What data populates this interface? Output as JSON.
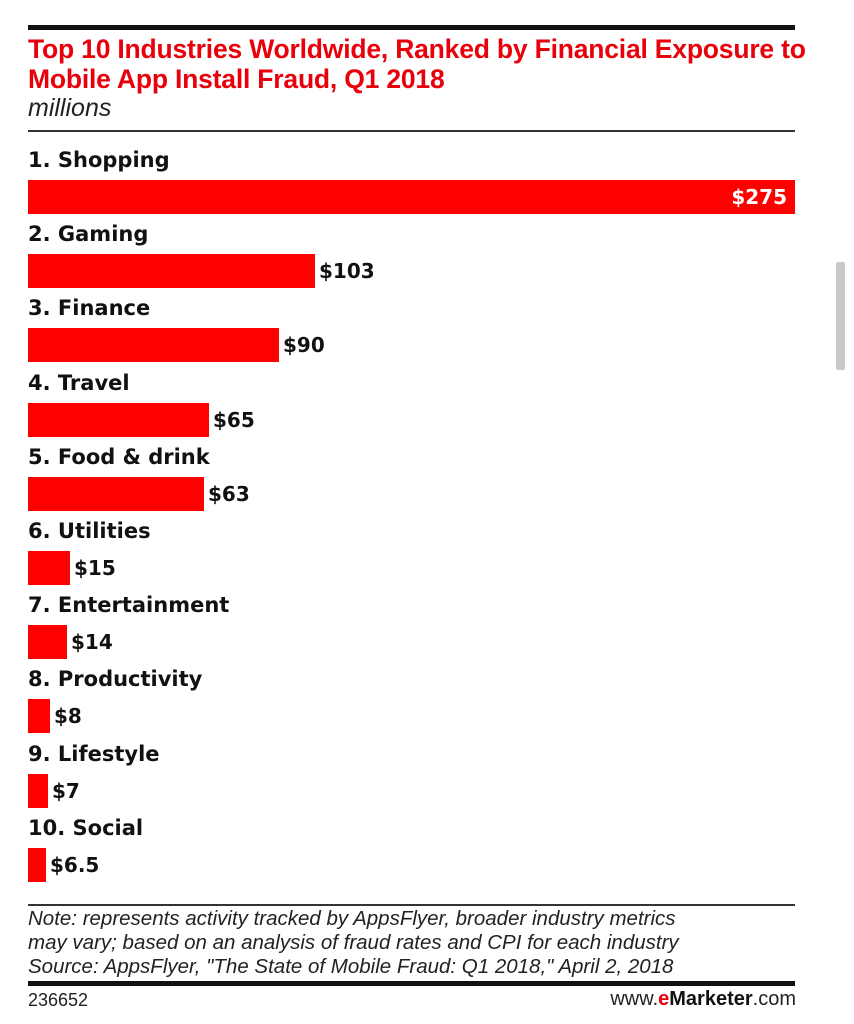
{
  "title": "Top 10 Industries Worldwide, Ranked by Financial Exposure to Mobile App Install Fraud, Q1 2018",
  "subtitle": "millions",
  "note_lines": [
    "Note: represents activity tracked by AppsFlyer, broader industry metrics",
    "may vary; based on an analysis of fraud rates and CPI for each industry",
    "Source: AppsFlyer, \"The State of Mobile Fraud: Q1 2018,\" April 2, 2018"
  ],
  "chart_id": "236652",
  "brand": {
    "prefix": "www.",
    "e": "e",
    "name": "Marketer",
    "suffix": ".com"
  },
  "colors": {
    "bar": "#ff0000",
    "title": "#e8000b"
  },
  "chart_data": {
    "type": "bar",
    "orientation": "horizontal",
    "title": "Top 10 Industries Worldwide, Ranked by Financial Exposure to Mobile App Install Fraud, Q1 2018",
    "subtitle": "millions",
    "xlabel": "",
    "ylabel": "",
    "xlim": [
      0,
      275
    ],
    "grid": false,
    "legend": "none",
    "categories": [
      "1. Shopping",
      "2. Gaming",
      "3. Finance",
      "4. Travel",
      "5. Food & drink",
      "6. Utilities",
      "7. Entertainment",
      "8. Productivity",
      "9. Lifestyle",
      "10. Social"
    ],
    "values": [
      275,
      103,
      90,
      65,
      63,
      15,
      14,
      8,
      7,
      6.5
    ],
    "labels": [
      "$275",
      "$103",
      "$90",
      "$65",
      "$63",
      "$15",
      "$14",
      "$8",
      "$7",
      "$6.5"
    ]
  }
}
